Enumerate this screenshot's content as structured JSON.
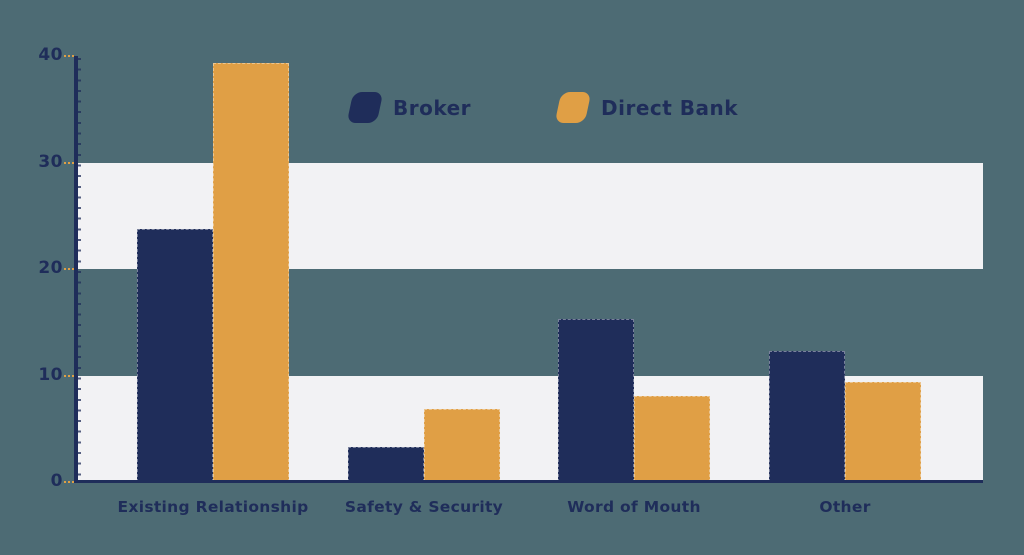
{
  "colors": {
    "background": "#4d6b74",
    "band": "#f2f2f4",
    "axis": "#1f2d5a",
    "label": "#1f2d5a",
    "tick": "#e09f45"
  },
  "legend": {
    "items": [
      {
        "label": "Broker",
        "swatch": "navy-parallelogram-swatch"
      },
      {
        "label": "Direct Bank",
        "swatch": "orange-parallelogram-swatch"
      }
    ]
  },
  "chart_data": {
    "type": "bar",
    "title": "",
    "xlabel": "",
    "ylabel": "",
    "categories": [
      "Existing Relationship",
      "Safety & Security",
      "Word of Mouth",
      "Other"
    ],
    "series": [
      {
        "name": "Broker",
        "color": "#1f2d5a",
        "values": [
          23.8,
          3.3,
          15.3,
          12.3
        ]
      },
      {
        "name": "Direct Bank",
        "color": "#e09f45",
        "values": [
          39.3,
          6.9,
          8.1,
          9.4
        ]
      }
    ],
    "ylim": [
      0,
      40
    ],
    "yticks": [
      0,
      10,
      20,
      30,
      40
    ],
    "bands": [
      [
        0,
        10
      ],
      [
        20,
        30
      ]
    ],
    "grid": "horizontal-bands",
    "legend_position": "top-center"
  }
}
